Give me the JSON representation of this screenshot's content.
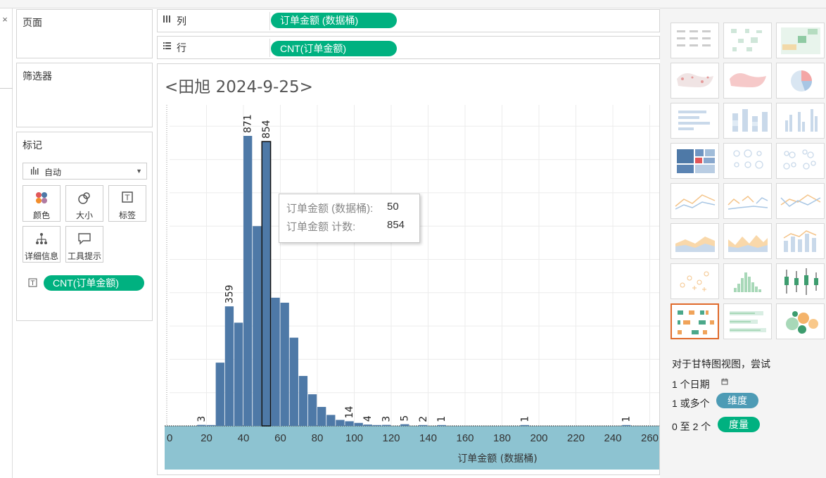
{
  "window": {
    "close_glyph": "×"
  },
  "left_panel": {
    "pages_title": "页面",
    "filters_title": "筛选器",
    "marks_title": "标记",
    "marks_type": "自动",
    "mark_buttons": [
      {
        "label": "颜色",
        "icon": "color-icon"
      },
      {
        "label": "大小",
        "icon": "size-icon"
      },
      {
        "label": "标签",
        "icon": "label-icon"
      },
      {
        "label": "详细信息",
        "icon": "detail-icon"
      },
      {
        "label": "工具提示",
        "icon": "tooltip-icon"
      }
    ],
    "marks_field": "CNT(订单金额)"
  },
  "shelves": {
    "columns_label": "列",
    "columns_pill": "订单金额 (数据桶)",
    "rows_label": "行",
    "rows_pill": "CNT(订单金额)"
  },
  "viz": {
    "title": "<田旭 2024-9-25>",
    "tooltip": {
      "row1_label": "订单金额 (数据桶):",
      "row1_value": "50",
      "row2_label": "订单金额 计数:",
      "row2_value": "854"
    }
  },
  "chart_data": {
    "type": "bar",
    "xlabel": "订单金额 (数据桶)",
    "ylabel": "",
    "x_ticks": [
      0,
      20,
      40,
      60,
      80,
      100,
      120,
      140,
      160,
      180,
      200,
      220,
      240,
      260
    ],
    "bin_width": 5,
    "bins": [
      {
        "x": 15,
        "count": 3,
        "label": "3"
      },
      {
        "x": 20,
        "count": 2
      },
      {
        "x": 25,
        "count": 190
      },
      {
        "x": 30,
        "count": 359,
        "label": "359"
      },
      {
        "x": 35,
        "count": 310
      },
      {
        "x": 40,
        "count": 871,
        "label": "871"
      },
      {
        "x": 45,
        "count": 600
      },
      {
        "x": 50,
        "count": 854,
        "label": "854",
        "selected": true
      },
      {
        "x": 55,
        "count": 385
      },
      {
        "x": 60,
        "count": 370
      },
      {
        "x": 65,
        "count": 265
      },
      {
        "x": 70,
        "count": 150
      },
      {
        "x": 75,
        "count": 95
      },
      {
        "x": 80,
        "count": 57
      },
      {
        "x": 85,
        "count": 33
      },
      {
        "x": 90,
        "count": 18
      },
      {
        "x": 95,
        "count": 14,
        "label": "14"
      },
      {
        "x": 100,
        "count": 9
      },
      {
        "x": 105,
        "count": 4,
        "label": "4"
      },
      {
        "x": 110,
        "count": 2
      },
      {
        "x": 115,
        "count": 3,
        "label": "3"
      },
      {
        "x": 125,
        "count": 5,
        "label": "5"
      },
      {
        "x": 135,
        "count": 2,
        "label": "2"
      },
      {
        "x": 145,
        "count": 1,
        "label": "1"
      },
      {
        "x": 190,
        "count": 1,
        "label": "1"
      },
      {
        "x": 245,
        "count": 1,
        "label": "1"
      }
    ],
    "bar_color": "#4e79a7",
    "axis_band_color": "#8dc3d1"
  },
  "show_me": {
    "hint_title": "对于甘特图视图，尝试",
    "hint_dates": "1 个日期",
    "hint_dims_prefix": "1 或多个",
    "hint_dims_pill": "维度",
    "hint_meas_prefix": "0 至 2 个",
    "hint_meas_pill": "度量",
    "dims_color": "#4d9bb5",
    "meas_color": "#00b180",
    "selected_color": "#e06a2b"
  }
}
